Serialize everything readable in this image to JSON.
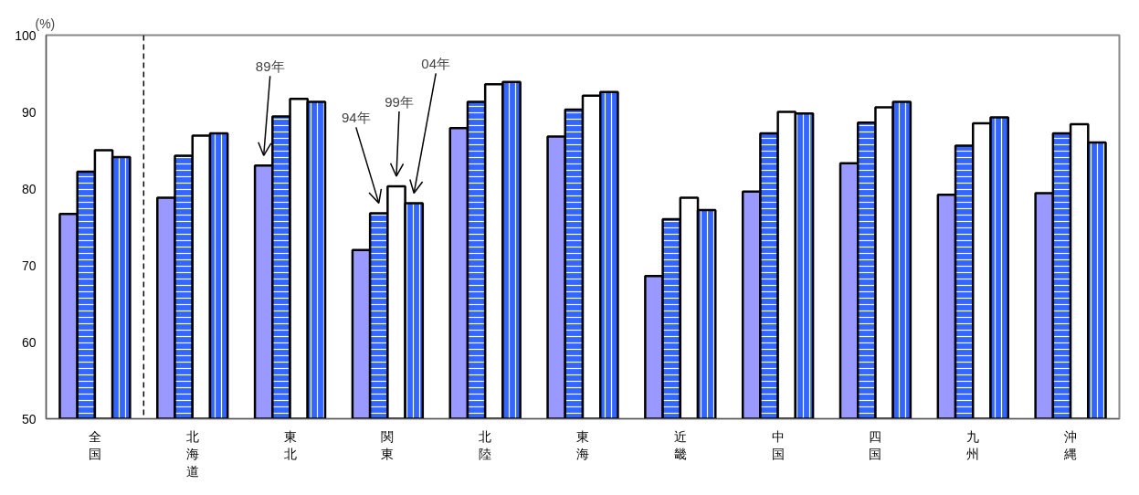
{
  "chart_data": {
    "type": "bar",
    "ylabel": "(%)",
    "categories": [
      "全国",
      "北海道",
      "東北",
      "関東",
      "北陸",
      "東海",
      "近畿",
      "中国",
      "四国",
      "九州",
      "沖縄"
    ],
    "series": [
      {
        "color": "#9999ff",
        "values": [
          76.7,
          78.8,
          83.0,
          72.0,
          87.9,
          86.8,
          68.6,
          79.6,
          83.3,
          79.2,
          79.4
        ]
      },
      {
        "color": "#3366ff",
        "values": [
          82.2,
          84.3,
          89.4,
          76.8,
          91.3,
          90.3,
          76.0,
          87.2,
          88.6,
          85.6,
          87.2
        ]
      },
      {
        "color": "#ffffff",
        "values": [
          85.0,
          86.9,
          91.7,
          80.3,
          93.6,
          92.1,
          78.8,
          90.0,
          90.6,
          88.5,
          88.4
        ]
      },
      {
        "color": "#3366ff",
        "values": [
          84.1,
          87.2,
          91.3,
          78.1,
          93.9,
          92.6,
          77.2,
          89.8,
          91.3,
          89.3,
          86.0
        ]
      }
    ],
    "ylim": [
      50,
      100
    ],
    "yticks": [
      50,
      60,
      70,
      80,
      90,
      100
    ],
    "grid": false,
    "annotations": [
      "89年",
      "94年",
      "99年",
      "04年"
    ]
  }
}
